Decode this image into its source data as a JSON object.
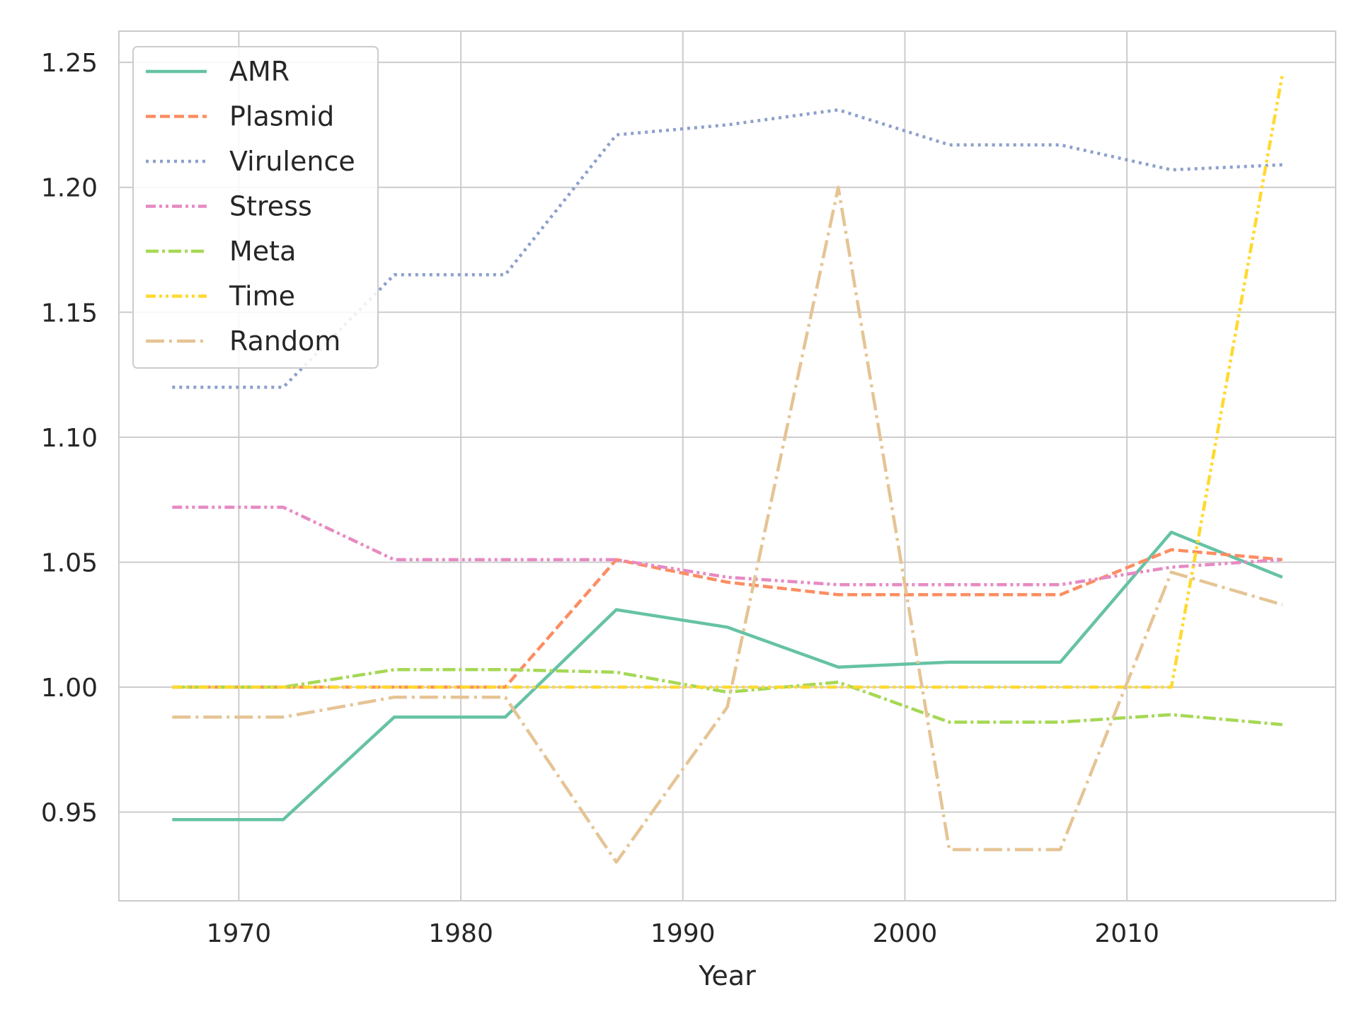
{
  "chart_data": {
    "type": "line",
    "xlabel": "Year",
    "ylabel": "",
    "xlim": [
      1964.6,
      2019.4
    ],
    "ylim": [
      0.9145,
      1.2625
    ],
    "x_ticks": [
      1970,
      1980,
      1990,
      2000,
      2010
    ],
    "y_ticks": [
      0.95,
      1.0,
      1.05,
      1.1,
      1.15,
      1.2,
      1.25
    ],
    "y_tick_labels": [
      "0.95",
      "1.00",
      "1.05",
      "1.10",
      "1.15",
      "1.20",
      "1.25"
    ],
    "grid": true,
    "legend_position": "top-left",
    "x": [
      1967,
      1972,
      1977,
      1982,
      1987,
      1992,
      1997,
      2002,
      2007,
      2012,
      2017
    ],
    "series": [
      {
        "name": "AMR",
        "color": "#66c2a5",
        "dash": "solid",
        "values": [
          0.947,
          0.947,
          0.988,
          0.988,
          1.031,
          1.024,
          1.008,
          1.01,
          1.01,
          1.062,
          1.044
        ]
      },
      {
        "name": "Plasmid",
        "color": "#fc8d62",
        "dash": "dashed",
        "values": [
          1.0,
          1.0,
          1.0,
          1.0,
          1.051,
          1.042,
          1.037,
          1.037,
          1.037,
          1.055,
          1.051
        ]
      },
      {
        "name": "Virulence",
        "color": "#8da0cb",
        "dash": "dotted",
        "values": [
          1.12,
          1.12,
          1.165,
          1.165,
          1.221,
          1.225,
          1.231,
          1.217,
          1.217,
          1.207,
          1.209
        ]
      },
      {
        "name": "Stress",
        "color": "#e78ac3",
        "dash": "dashdotdot",
        "values": [
          1.072,
          1.072,
          1.051,
          1.051,
          1.051,
          1.044,
          1.041,
          1.041,
          1.041,
          1.048,
          1.051
        ]
      },
      {
        "name": "Meta",
        "color": "#a6d854",
        "dash": "dashdot",
        "values": [
          1.0,
          1.0,
          1.007,
          1.007,
          1.006,
          0.998,
          1.002,
          0.986,
          0.986,
          0.989,
          0.985
        ]
      },
      {
        "name": "Time",
        "color": "#ffd92f",
        "dash": "dashdotdot",
        "values": [
          1.0,
          1.0,
          1.0,
          1.0,
          1.0,
          1.0,
          1.0,
          1.0,
          1.0,
          1.0,
          1.245
        ]
      },
      {
        "name": "Random",
        "color": "#e5c494",
        "dash": "longdashdot",
        "values": [
          0.988,
          0.988,
          0.996,
          0.996,
          0.93,
          0.992,
          1.2,
          0.935,
          0.935,
          1.046,
          1.033
        ]
      }
    ]
  }
}
